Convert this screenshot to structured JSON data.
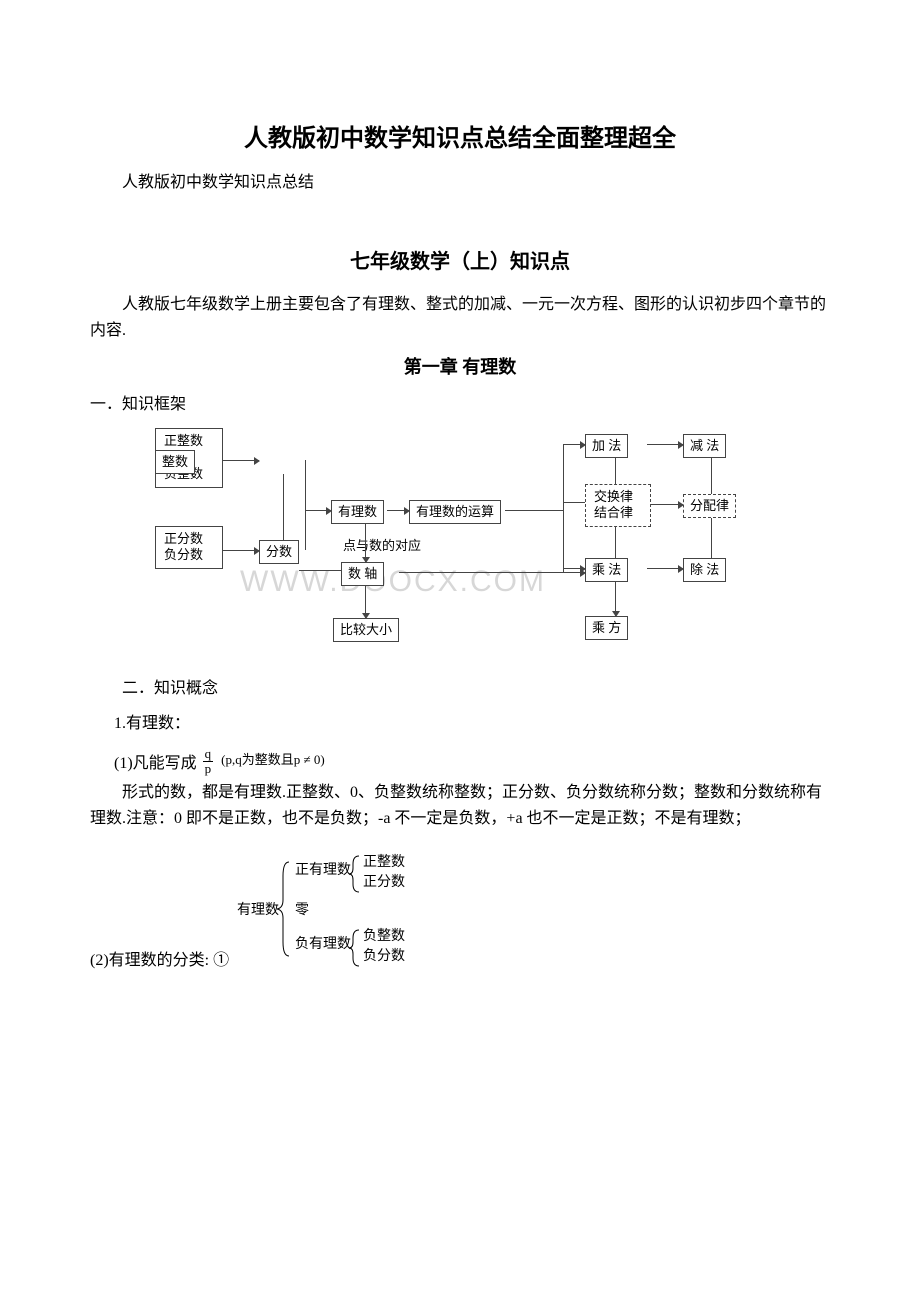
{
  "doc": {
    "title_main": "人教版初中数学知识点总结全面整理超全",
    "subtitle": "人教版初中数学知识点总结",
    "section_title": "七年级数学（上）知识点",
    "intro_para": "人教版七年级数学上册主要包含了有理数、整式的加减、一元一次方程、图形的认识初步四个章节的内容.",
    "chapter_title": "第一章 有理数",
    "heading_frame": "一．知识框架",
    "heading_concept": "二．知识概念",
    "item_1": "1.有理数：",
    "formula_lead": "(1)凡能写成",
    "formula_cond": "(p,q为整数且p ≠ 0)",
    "frac_num": "q",
    "frac_den": "p",
    "para_form": "形式的数，都是有理数.正整数、0、负整数统称整数；正分数、负分数统称分数；整数和分数统称有理数.注意：0 即不是正数，也不是负数；-a 不一定是负数，+a 也不一定是正数；不是有理数；",
    "class_lead": "(2)有理数的分类: ①"
  },
  "diagram": {
    "nodes": {
      "n1": "正整数\n0\n负整数",
      "n2": "正分数\n负分数",
      "n3": "整数",
      "n4": "分数",
      "n5": "有理数",
      "n6": "有理数的运算",
      "n7": "数   轴",
      "n8": "比较大小",
      "n9": "加   法",
      "n10": "减   法",
      "n11": "交换律\n结合律",
      "n12": "分配律",
      "n13": "乘   法",
      "n14": "除   法",
      "n15": "乘   方"
    },
    "label_points": "点与数的对应",
    "watermark": "WWW.DOOCX.COM"
  },
  "classification": {
    "root": "有理数",
    "b1": "正有理数",
    "b2": "零",
    "b3": "负有理数",
    "b1a": "正整数",
    "b1b": "正分数",
    "b3a": "负整数",
    "b3b": "负分数"
  }
}
